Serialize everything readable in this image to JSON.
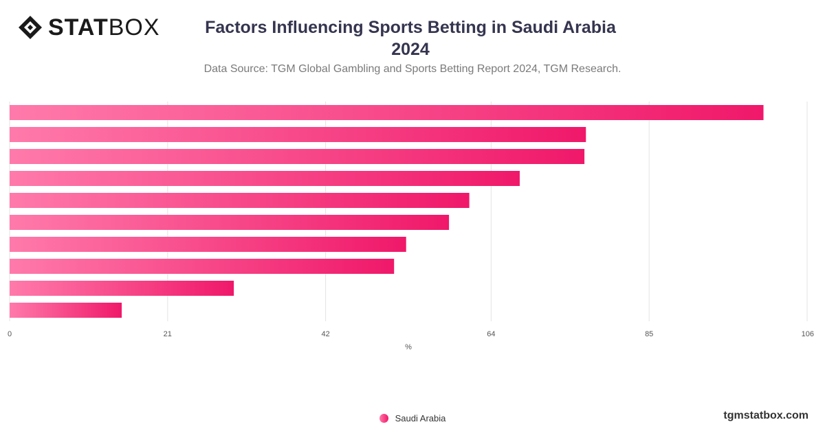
{
  "brand": {
    "logo_stat": "STAT",
    "logo_box": "BOX",
    "site": "tgmstatbox.com"
  },
  "header": {
    "title_line1": "Factors Influencing Sports Betting in Saudi Arabia",
    "title_line2": "2024",
    "subtitle": "Data Source: TGM Global Gambling and Sports Betting Report 2024, TGM Research."
  },
  "legend": {
    "series_name": "Saudi Arabia"
  },
  "chart_data": {
    "type": "bar",
    "orientation": "horizontal",
    "categories": [
      "",
      "",
      "",
      "",
      "",
      "",
      "",
      "",
      "",
      ""
    ],
    "series": [
      {
        "name": "Saudi Arabia",
        "values": [
          100.2,
          76.6,
          76.4,
          67.8,
          61.1,
          58.4,
          52.7,
          51.1,
          29.8,
          14.9
        ]
      }
    ],
    "xlabel": "%",
    "xlim": [
      0,
      106
    ],
    "xticks": [
      0,
      21,
      42,
      64,
      85,
      106
    ],
    "grid": true,
    "legend_position": "bottom",
    "colors": {
      "bar_start": "#ff7aaa",
      "bar_end": "#f0186a",
      "grid": "#e3e3e3",
      "tick_text": "#555555"
    }
  }
}
